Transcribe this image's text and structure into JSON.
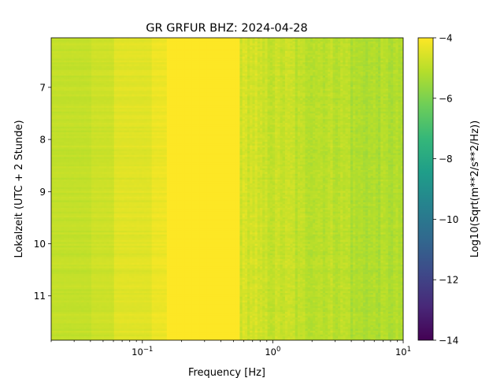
{
  "chart_data": {
    "type": "heatmap",
    "title": "GR GRFUR  BHZ: 2024-04-28",
    "xlabel": "Frequency [Hz]",
    "ylabel": "Lokalzeit (UTC + 2 Stunde)",
    "colorbar_label": "Log10(Sqrt(m**2/s**2/Hz))",
    "x_scale": "log",
    "xlim": [
      0.02,
      10
    ],
    "ylim": [
      11.85,
      6.05
    ],
    "y_inverted": true,
    "clim": [
      -14,
      -4
    ],
    "colormap": "viridis",
    "x_major_ticks": [
      {
        "value": 0.1,
        "base": "10",
        "exp": "−1"
      },
      {
        "value": 1,
        "base": "10",
        "exp": "0"
      },
      {
        "value": 10,
        "base": "10",
        "exp": "1"
      }
    ],
    "y_ticks": [
      {
        "value": 7,
        "label": "7"
      },
      {
        "value": 8,
        "label": "8"
      },
      {
        "value": 9,
        "label": "9"
      },
      {
        "value": 10,
        "label": "10"
      },
      {
        "value": 11,
        "label": "11"
      }
    ],
    "colorbar_ticks": [
      {
        "value": -4,
        "label": "−4"
      },
      {
        "value": -6,
        "label": "−6"
      },
      {
        "value": -8,
        "label": "−8"
      },
      {
        "value": -10,
        "label": "−10"
      },
      {
        "value": -12,
        "label": "−12"
      },
      {
        "value": -14,
        "label": "−14"
      }
    ],
    "frequency_bands": [
      {
        "fmin": 0.02,
        "fmax": 0.04,
        "level": -4.9
      },
      {
        "fmin": 0.04,
        "fmax": 0.06,
        "level": -4.75
      },
      {
        "fmin": 0.06,
        "fmax": 0.12,
        "level": -4.45
      },
      {
        "fmin": 0.12,
        "fmax": 0.155,
        "level": -4.25
      },
      {
        "fmin": 0.155,
        "fmax": 0.55,
        "level": -4.0
      },
      {
        "fmin": 0.55,
        "fmax": 0.75,
        "level": -4.65
      },
      {
        "fmin": 0.75,
        "fmax": 1.5,
        "level": -4.85
      },
      {
        "fmin": 1.5,
        "fmax": 4,
        "level": -5.0
      },
      {
        "fmin": 4,
        "fmax": 10,
        "level": -5.2
      }
    ]
  },
  "colors": {
    "viridis": [
      "#440154",
      "#482878",
      "#3e4989",
      "#31688e",
      "#26828e",
      "#1f9e89",
      "#35b779",
      "#6ece58",
      "#b5de2b",
      "#fde725"
    ]
  }
}
